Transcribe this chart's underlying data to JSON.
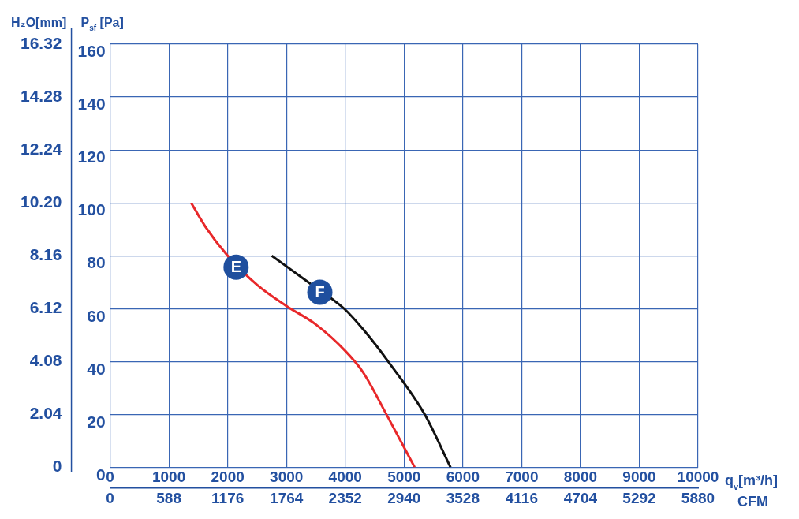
{
  "chart_data": {
    "type": "line",
    "xlabel": "q$_{v}$[m³/h]",
    "x2label": "CFM",
    "ylabel": "P$_{sf}$ [Pa]",
    "y2label": "H₂O[mm]",
    "xlim": [
      0,
      10000
    ],
    "xticks": [
      0,
      1000,
      2000,
      3000,
      4000,
      5000,
      6000,
      7000,
      8000,
      9000,
      10000
    ],
    "x2lim": [
      0,
      5880
    ],
    "x2ticks": [
      0,
      588,
      1176,
      1764,
      2352,
      2940,
      3528,
      4116,
      4704,
      5292,
      5880
    ],
    "ylim": [
      0,
      160
    ],
    "yticks": [
      0,
      20,
      40,
      60,
      80,
      100,
      120,
      140,
      160
    ],
    "y2lim": [
      0,
      16.32
    ],
    "y2ticks": [
      0,
      2.04,
      4.08,
      6.12,
      8.16,
      {
        "value": 10.2,
        "label": "10.20"
      },
      12.24,
      14.28,
      16.32
    ],
    "grid": true,
    "legend": false,
    "marker": "none",
    "line_style": "solid",
    "series": [
      {
        "name": "E",
        "color": "#e8282a",
        "x": [
          1380,
          1620,
          2000,
          2500,
          3000,
          3500,
          4000,
          4300,
          4700,
          5180
        ],
        "values": [
          100,
          91,
          80,
          69,
          61,
          54,
          44,
          36,
          20,
          0
        ]
      },
      {
        "name": "F",
        "color": "#111111",
        "x": [
          2750,
          3370,
          3980,
          4310,
          4730,
          5350,
          5790
        ],
        "values": [
          80,
          70,
          60,
          52,
          40,
          20,
          0
        ]
      }
    ]
  }
}
